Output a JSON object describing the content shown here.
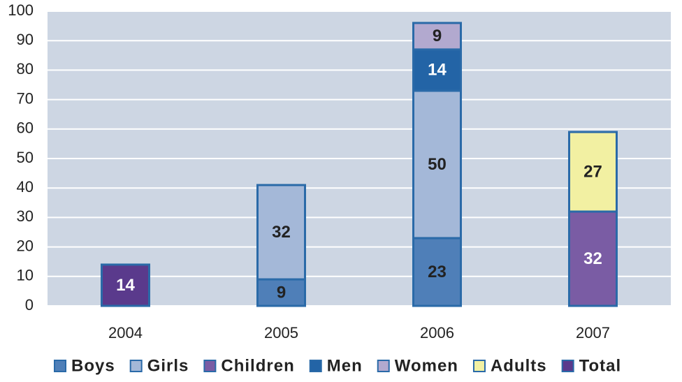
{
  "chart_data": {
    "type": "stacked-bar",
    "categories": [
      "2004",
      "2005",
      "2006",
      "2007"
    ],
    "series": [
      {
        "name": "Boys",
        "color": "#4f7fb8",
        "values": [
          null,
          9,
          23,
          null
        ]
      },
      {
        "name": "Girls",
        "color": "#a4b8d8",
        "values": [
          null,
          32,
          50,
          null
        ]
      },
      {
        "name": "Children",
        "color": "#7a5ca4",
        "values": [
          null,
          null,
          null,
          32
        ]
      },
      {
        "name": "Men",
        "color": "#2364a6",
        "values": [
          null,
          null,
          14,
          null
        ]
      },
      {
        "name": "Women",
        "color": "#b2a9cf",
        "values": [
          null,
          null,
          9,
          null
        ]
      },
      {
        "name": "Adults",
        "color": "#f2f0a2",
        "values": [
          null,
          null,
          null,
          27
        ]
      },
      {
        "name": "Total",
        "color": "#5a3a8c",
        "values": [
          14,
          null,
          null,
          null
        ]
      }
    ],
    "ylim": [
      0,
      100
    ],
    "yticks": [
      0,
      10,
      20,
      30,
      40,
      50,
      60,
      70,
      80,
      90,
      100
    ],
    "grid": true,
    "legend": "bottom"
  }
}
